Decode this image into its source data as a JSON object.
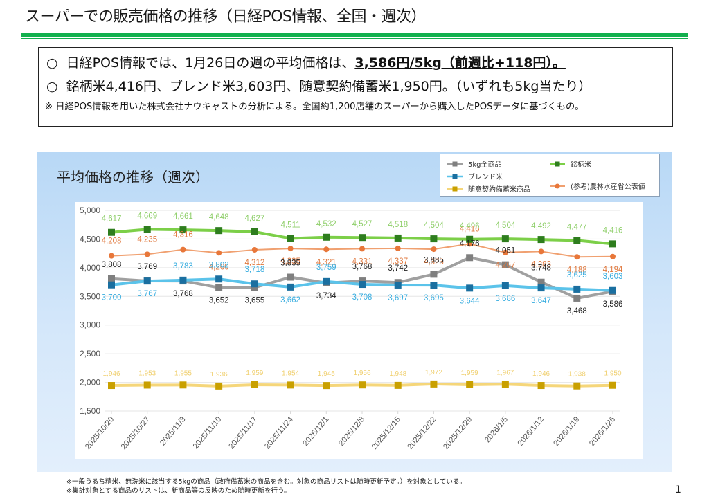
{
  "header": {
    "title": "スーパーでの販売価格の推移（日経POS情報、全国・週次）"
  },
  "summary": {
    "bullet_symbol": "○",
    "line1_prefix": "日経POS情報では、1月26日の週の平均価格は、",
    "line1_highlight": "3,586円/5kg（前週比+118円）。",
    "line2": "銘柄米4,416円、ブレンド米3,603円、随意契約備蓄米1,950円。（いずれも5kg当たり）",
    "note": "※  日経POS情報を用いた株式会社ナウキャストの分析による。全国約1,200店舗のスーパーから購入したPOSデータに基づくもの。"
  },
  "chart_panel": {
    "title": "平均価格の推移（週次）"
  },
  "chart_data": {
    "type": "line",
    "title": "平均価格の推移（週次）",
    "xlabel": "",
    "ylabel": "",
    "ylim": [
      1500,
      5000
    ],
    "yticks": [
      1500,
      2000,
      2500,
      3000,
      3500,
      4000,
      4500,
      5000
    ],
    "ytick_labels": [
      "1,500",
      "2,000",
      "2,500",
      "3,000",
      "3,500",
      "4,000",
      "4,500",
      "5,000"
    ],
    "grid": true,
    "legend_position": "top-right",
    "categories": [
      "2025/10/20",
      "2025/10/27",
      "2025/11/3",
      "2025/11/10",
      "2025/11/17",
      "2025/11/24",
      "2025/12/1",
      "2025/12/8",
      "2025/12/15",
      "2025/12/22",
      "2025/12/29",
      "2026/1/5",
      "2026/1/12",
      "2026/1/19",
      "2026/1/26"
    ],
    "series": [
      {
        "name": "5kg全商品",
        "line_color": "#a0a0a0",
        "marker_color": "#7f7f7f",
        "label_color": "#222222",
        "marker": "square",
        "values": [
          3808,
          3769,
          3768,
          3652,
          3655,
          3835,
          3734,
          3768,
          3742,
          3885,
          4176,
          4051,
          3748,
          3468,
          3586
        ]
      },
      {
        "name": "銘柄米",
        "line_color": "#7ccf48",
        "marker_color": "#2e7d1e",
        "label_color": "#8fcf6a",
        "marker": "square",
        "values": [
          4617,
          4669,
          4661,
          4648,
          4627,
          4511,
          4532,
          4527,
          4518,
          4504,
          4496,
          4504,
          4492,
          4477,
          4416
        ]
      },
      {
        "name": "ブレンド米",
        "line_color": "#5bc3ea",
        "marker_color": "#1a6fa0",
        "label_color": "#3aaee0",
        "marker": "square",
        "values": [
          3700,
          3767,
          3783,
          3802,
          3718,
          3662,
          3759,
          3708,
          3697,
          3695,
          3644,
          3686,
          3647,
          3625,
          3603
        ]
      },
      {
        "name": "(参考)農林水産省公表値",
        "line_color": "#f0a070",
        "marker_color": "#e8773a",
        "label_color": "#e07a40",
        "marker": "circle",
        "values": [
          4208,
          4235,
          4316,
          4260,
          4312,
          4335,
          4321,
          4331,
          4337,
          4323,
          4416,
          4267,
          4283,
          4188,
          4194
        ]
      },
      {
        "name": "随意契約備蓄米商品",
        "line_color": "#f5d67a",
        "marker_color": "#c9a000",
        "label_color": "#f0d070",
        "marker": "square",
        "values": [
          1946,
          1953,
          1955,
          1936,
          1959,
          1954,
          1945,
          1956,
          1948,
          1972,
          1959,
          1967,
          1946,
          1938,
          1950
        ]
      }
    ],
    "data_labels": {
      "5kg全商品": [
        "3,808",
        "3,769",
        "3,768",
        "3,652",
        "3,655",
        "3,835",
        "3,734",
        "3,768",
        "3,742",
        "3,885",
        "4,176",
        "4,051",
        "3,748",
        "3,468",
        "3,586"
      ],
      "銘柄米": [
        "4,617",
        "4,669",
        "4,661",
        "4,648",
        "4,627",
        "4,511",
        "4,532",
        "4,527",
        "4,518",
        "4,504",
        "4,496",
        "4,504",
        "4,492",
        "4,477",
        "4,416"
      ],
      "ブレンド米": [
        "3,700",
        "3,767",
        "3,783",
        "3,802",
        "3,718",
        "3,662",
        "3,759",
        "3,708",
        "3,697",
        "3,695",
        "3,644",
        "3,686",
        "3,647",
        "3,625",
        "3,603"
      ],
      "(参考)農林水産省公表値": [
        "4,208",
        "4,235",
        "4,316",
        "4,260",
        "4,312",
        "4,335",
        "4,321",
        "4,331",
        "4,337",
        "4,323",
        "4,416",
        "4,267",
        "4,283",
        "4,188",
        "4,194"
      ],
      "随意契約備蓄米商品": [
        "1,946",
        "1,953",
        "1,955",
        "1,936",
        "1,959",
        "1,954",
        "1,945",
        "1,956",
        "1,948",
        "1,972",
        "1,959",
        "1,967",
        "1,946",
        "1,938",
        "1,950"
      ]
    }
  },
  "legend": {
    "items": [
      {
        "label": "5kg全商品"
      },
      {
        "label": "銘柄米"
      },
      {
        "label": "ブレンド米"
      },
      {
        "label": "随意契約備蓄米商品"
      },
      {
        "label": "(参考)農林水産省公表値"
      }
    ]
  },
  "footnotes": [
    "※一般うるち精米、無洗米に該当する5kgの商品（政府備蓄米の商品を含む。対象の商品リストは随時更新予定。）を対象としている。",
    "※集計対象とする商品のリストは、新商品等の反映のため随時更新を行う。"
  ],
  "page_number": "1"
}
